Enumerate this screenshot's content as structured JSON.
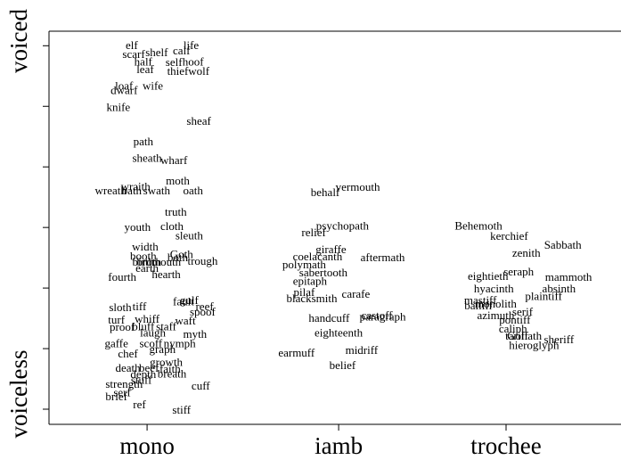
{
  "chart_data": {
    "type": "scatter",
    "y_top_label": "voiced",
    "y_bottom_label": "voiceless",
    "xlim": [
      0.488,
      3.474
    ],
    "ylim": [
      -0.25,
      6.24
    ],
    "xticks": [
      {
        "value": 1,
        "label": "mono"
      },
      {
        "value": 2,
        "label": "iamb"
      },
      {
        "value": 2.874,
        "label": "trochee"
      }
    ],
    "yticks": [
      0,
      1,
      2,
      3,
      4,
      5,
      6
    ],
    "color": "#000000",
    "labels": [
      "elf",
      "scarf",
      "shelf",
      "calf",
      "life",
      "half",
      "self",
      "hoof",
      "leaf",
      "thief",
      "wolf",
      "loaf",
      "wife",
      "dwarf",
      "knife",
      "sheaf",
      "path",
      "sheath",
      "wharf",
      "moth",
      "wraith",
      "wreath",
      "bath",
      "swath",
      "oath",
      "truth",
      "youth",
      "cloth",
      "sleuth",
      "width",
      "booth",
      "Goth",
      "both",
      "birth",
      "broth",
      "mouth",
      "trough",
      "earth",
      "fourth",
      "hearth",
      "sloth",
      "tiff",
      "fault",
      "gulf",
      "reef",
      "spoof",
      "turf",
      "whiff",
      "waft",
      "proof",
      "bluff",
      "staff",
      "laugh",
      "myth",
      "gaffe",
      "scoff",
      "nymph",
      "chef",
      "graph",
      "growth",
      "death",
      "beef",
      "faith",
      "depth",
      "breath",
      "strength",
      "stuff",
      "cuff",
      "serf",
      "brief",
      "ref",
      "stiff",
      "behalf",
      "vermouth",
      "psychopath",
      "relief",
      "giraffe",
      "coelacanth",
      "aftermath",
      "polymath",
      "sabertooth",
      "epitaph",
      "pilaf",
      "blacksmith",
      "carafe",
      "handcuff",
      "castoff",
      "paragraph",
      "eighteenth",
      "earmuff",
      "midriff",
      "belief",
      "Behemoth",
      "kerchief",
      "Sabbath",
      "zenith",
      "seraph",
      "eightieth",
      "mammoth",
      "hyacinth",
      "absinth",
      "plaintiff",
      "mastiff",
      "monolith",
      "bailiff",
      "serif",
      "azimuth",
      "pontiff",
      "caliph",
      "tariff",
      "Goliath",
      "sheriff",
      "hieroglyph"
    ],
    "x": [
      0.92,
      0.93,
      1.05,
      1.18,
      1.23,
      0.98,
      1.14,
      1.24,
      0.99,
      1.16,
      1.27,
      0.88,
      1.03,
      0.88,
      0.85,
      1.27,
      0.98,
      1.0,
      1.14,
      1.16,
      0.94,
      0.81,
      0.92,
      1.05,
      1.24,
      1.15,
      0.95,
      1.13,
      1.22,
      0.99,
      0.98,
      1.18,
      1.16,
      0.98,
      1.01,
      1.1,
      1.29,
      1.0,
      0.87,
      1.1,
      0.86,
      0.96,
      1.19,
      1.22,
      1.3,
      1.29,
      0.84,
      1.0,
      1.2,
      0.87,
      0.98,
      1.1,
      1.03,
      1.25,
      0.84,
      1.02,
      1.17,
      0.9,
      1.08,
      1.1,
      0.9,
      1.01,
      1.12,
      0.98,
      1.13,
      0.88,
      0.97,
      1.28,
      0.87,
      0.84,
      0.96,
      1.18,
      1.93,
      2.1,
      2.02,
      1.87,
      1.96,
      1.89,
      2.23,
      1.82,
      1.92,
      1.85,
      1.82,
      1.86,
      2.09,
      1.95,
      2.2,
      2.23,
      2.0,
      1.78,
      2.12,
      2.02,
      2.73,
      2.89,
      3.17,
      2.98,
      2.94,
      2.78,
      3.2,
      2.81,
      3.15,
      3.07,
      2.74,
      2.82,
      2.73,
      2.96,
      2.82,
      2.92,
      2.91,
      2.93,
      2.97,
      3.15,
      3.02
    ],
    "y": [
      5.99,
      5.84,
      5.87,
      5.9,
      5.99,
      5.72,
      5.71,
      5.72,
      5.59,
      5.56,
      5.56,
      5.32,
      5.32,
      5.25,
      4.97,
      4.74,
      4.4,
      4.13,
      4.09,
      3.75,
      3.66,
      3.59,
      3.59,
      3.59,
      3.59,
      3.24,
      2.99,
      3.0,
      2.85,
      2.66,
      2.51,
      2.54,
      2.49,
      2.41,
      2.41,
      2.41,
      2.43,
      2.31,
      2.16,
      2.21,
      1.66,
      1.68,
      1.76,
      1.78,
      1.68,
      1.59,
      1.46,
      1.47,
      1.44,
      1.34,
      1.35,
      1.35,
      1.24,
      1.22,
      1.07,
      1.07,
      1.07,
      0.9,
      0.97,
      0.76,
      0.66,
      0.66,
      0.65,
      0.56,
      0.57,
      0.4,
      0.46,
      0.37,
      0.26,
      0.19,
      0.06,
      -0.03,
      3.56,
      3.65,
      3.01,
      2.9,
      2.62,
      2.5,
      2.49,
      2.37,
      2.24,
      2.1,
      1.91,
      1.81,
      1.88,
      1.49,
      1.53,
      1.51,
      1.24,
      0.91,
      0.96,
      0.71,
      3.01,
      2.84,
      2.69,
      2.56,
      2.25,
      2.18,
      2.16,
      1.97,
      1.97,
      1.85,
      1.78,
      1.72,
      1.69,
      1.59,
      1.53,
      1.46,
      1.31,
      1.19,
      1.19,
      1.13,
      1.04
    ]
  }
}
